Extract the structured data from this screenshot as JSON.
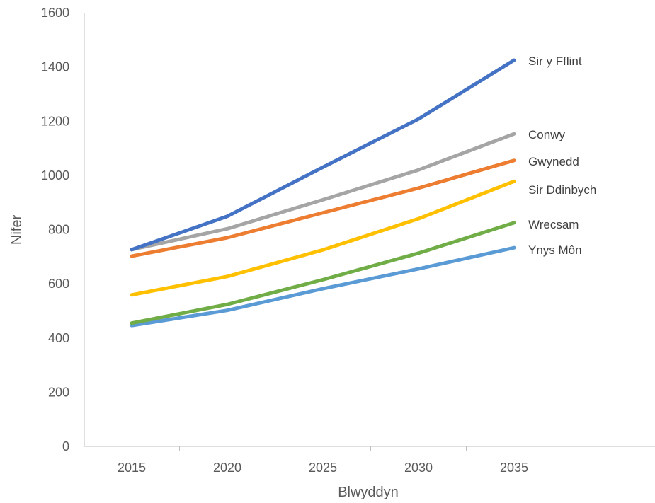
{
  "chart_data": {
    "type": "line",
    "x": [
      2015,
      2020,
      2025,
      2030,
      2035
    ],
    "x_tick_labels": [
      "2015",
      "2020",
      "2025",
      "2030",
      "2035"
    ],
    "xlabel": "Blwyddyn",
    "ylabel": "Nifer",
    "ylim": [
      0,
      1600
    ],
    "y_ticks": [
      0,
      200,
      400,
      600,
      800,
      1000,
      1200,
      1400,
      1600
    ],
    "y_tick_labels": [
      "0",
      "200",
      "400",
      "600",
      "800",
      "1000",
      "1200",
      "1400",
      "1600"
    ],
    "grid": false,
    "legend": "direct labels at line ends",
    "series": [
      {
        "name": "Sir y Fflint",
        "color": "#4472C4",
        "values": [
          726,
          849,
          1030,
          1208,
          1425
        ]
      },
      {
        "name": "Conwy",
        "color": "#A5A5A5",
        "values": [
          726,
          803,
          910,
          1020,
          1153
        ]
      },
      {
        "name": "Gwynedd",
        "color": "#ED7D31",
        "values": [
          702,
          770,
          862,
          953,
          1055
        ]
      },
      {
        "name": "Sir Ddinbych",
        "color": "#FFC000",
        "values": [
          559,
          627,
          725,
          840,
          978
        ]
      },
      {
        "name": "Wrecsam",
        "color": "#70AD47",
        "values": [
          455,
          524,
          615,
          713,
          825
        ]
      },
      {
        "name": "Ynys Môn",
        "color": "#5B9BD5",
        "values": [
          446,
          502,
          582,
          655,
          733
        ]
      }
    ]
  }
}
